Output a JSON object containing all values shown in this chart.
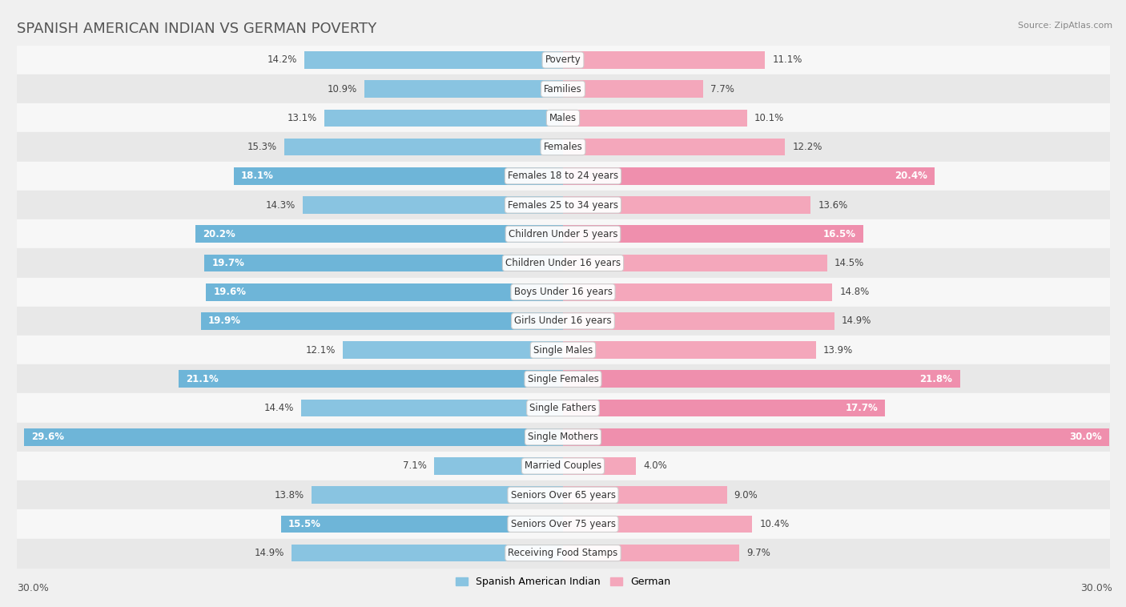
{
  "title": "SPANISH AMERICAN INDIAN VS GERMAN POVERTY",
  "source": "Source: ZipAtlas.com",
  "categories": [
    "Poverty",
    "Families",
    "Males",
    "Females",
    "Females 18 to 24 years",
    "Females 25 to 34 years",
    "Children Under 5 years",
    "Children Under 16 years",
    "Boys Under 16 years",
    "Girls Under 16 years",
    "Single Males",
    "Single Females",
    "Single Fathers",
    "Single Mothers",
    "Married Couples",
    "Seniors Over 65 years",
    "Seniors Over 75 years",
    "Receiving Food Stamps"
  ],
  "left_values": [
    14.2,
    10.9,
    13.1,
    15.3,
    18.1,
    14.3,
    20.2,
    19.7,
    19.6,
    19.9,
    12.1,
    21.1,
    14.4,
    29.6,
    7.1,
    13.8,
    15.5,
    14.9
  ],
  "right_values": [
    11.1,
    7.7,
    10.1,
    12.2,
    20.4,
    13.6,
    16.5,
    14.5,
    14.8,
    14.9,
    13.9,
    21.8,
    17.7,
    30.0,
    4.0,
    9.0,
    10.4,
    9.7
  ],
  "left_color": "#89C4E1",
  "right_color": "#F4A7BB",
  "left_color_highlight": "#6EB5D8",
  "right_color_highlight": "#EF8FAD",
  "label_left": "Spanish American Indian",
  "label_right": "German",
  "max_val": 30.0,
  "bg_color": "#f0f0f0",
  "row_bg_light": "#f7f7f7",
  "row_bg_dark": "#e8e8e8",
  "title_fontsize": 13,
  "label_fontsize": 8.5,
  "value_fontsize": 8.5,
  "footer_value": "30.0%",
  "white_text_threshold": 15.5
}
